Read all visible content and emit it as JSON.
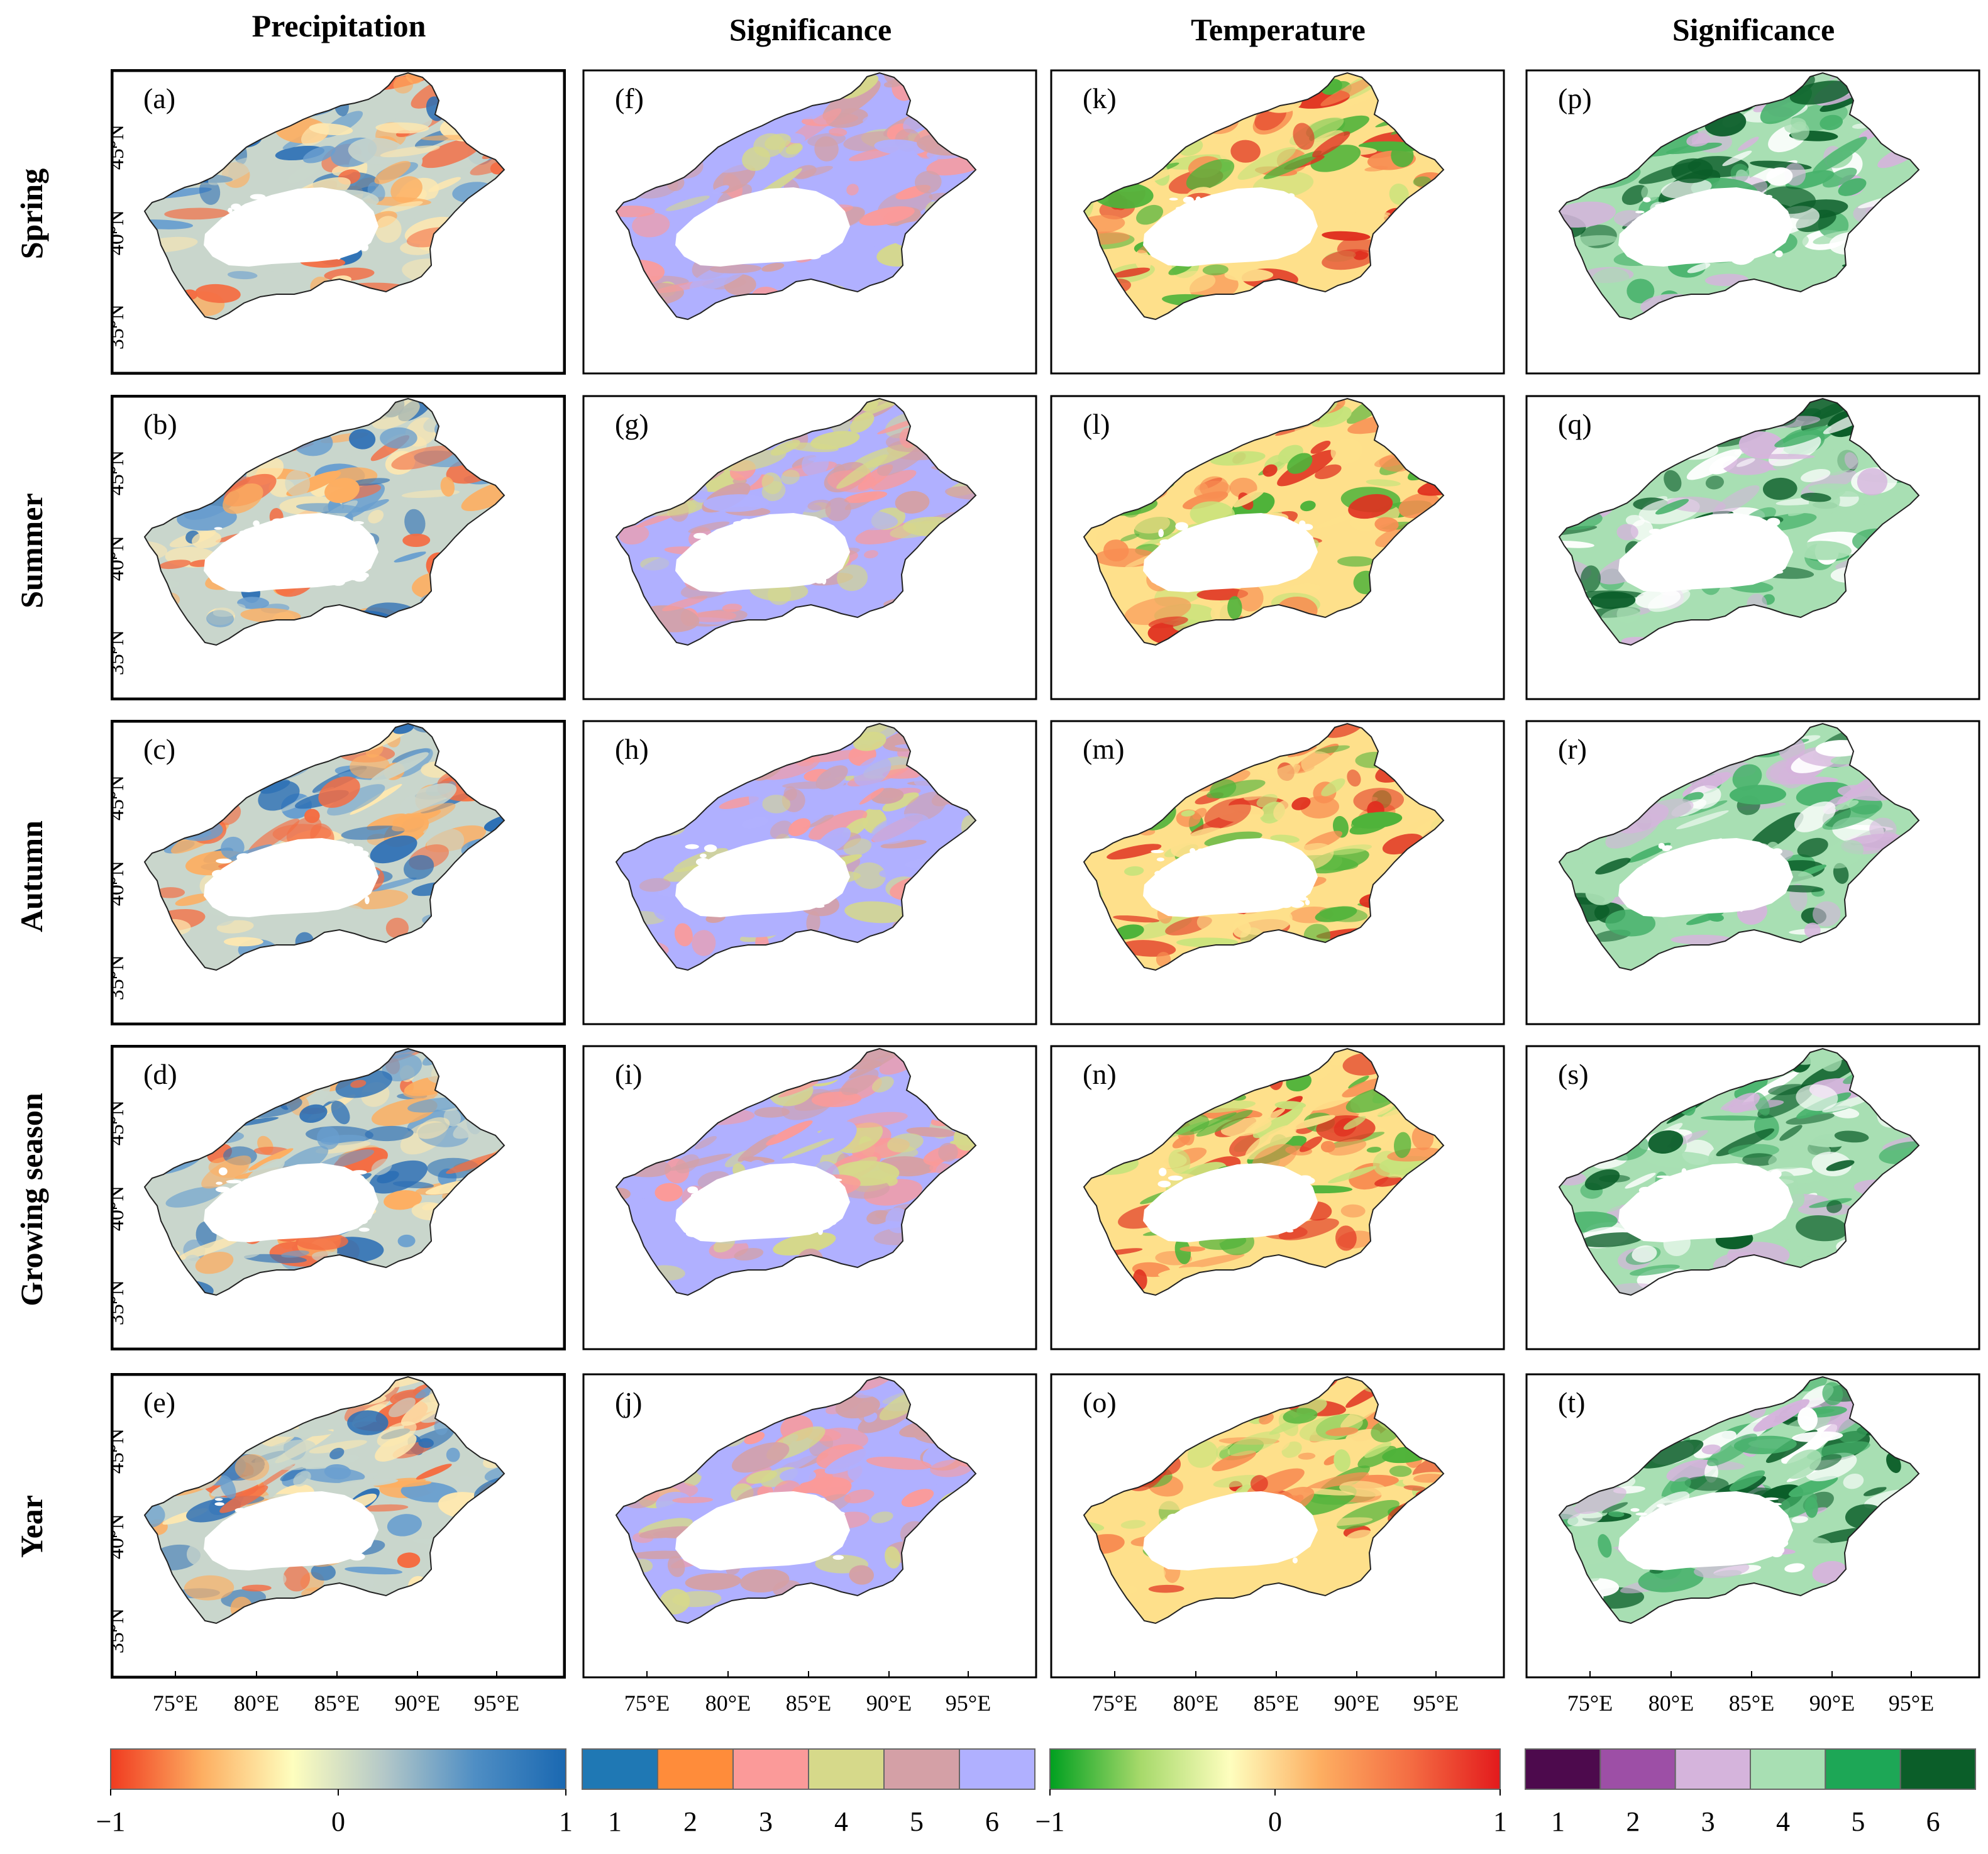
{
  "column_headers": [
    "Precipitation",
    "Significance",
    "Temperature",
    "Significance"
  ],
  "row_headers": [
    "Spring",
    "Summer",
    "Autumn",
    "Growing season",
    "Year"
  ],
  "panel_labels": [
    [
      "(a)",
      "(b)",
      "(c)",
      "(d)",
      "(e)"
    ],
    [
      "(f)",
      "(g)",
      "(h)",
      "(i)",
      "(j)"
    ],
    [
      "(k)",
      "(l)",
      "(m)",
      "(n)",
      "(o)"
    ],
    [
      "(p)",
      "(q)",
      "(r)",
      "(s)",
      "(t)"
    ]
  ],
  "lat_ticks": [
    "45°N",
    "40°N",
    "35°N"
  ],
  "lon_ticks": [
    "75°E",
    "80°E",
    "85°E",
    "90°E",
    "95°E"
  ],
  "legends": {
    "precipitation": {
      "min": "−1",
      "mid": "0",
      "max": "1",
      "colors": [
        "#f03b20",
        "#fdae61",
        "#fefebe",
        "#b4c8c8",
        "#4f8ec4",
        "#1a68b1"
      ]
    },
    "significance_precip": {
      "labels": [
        "1",
        "2",
        "3",
        "4",
        "5",
        "6"
      ],
      "colors": [
        "#1f78b4",
        "#ff8c3a",
        "#fb9a99",
        "#d6d98a",
        "#d4a0a6",
        "#b0b0ff"
      ]
    },
    "temperature": {
      "min": "−1",
      "mid": "0",
      "max": "1",
      "colors": [
        "#00a020",
        "#a6d96a",
        "#fefebe",
        "#fdae61",
        "#f46d43",
        "#e31a1c"
      ]
    },
    "significance_temp": {
      "labels": [
        "1",
        "2",
        "3",
        "4",
        "5",
        "6"
      ],
      "colors": [
        "#4d0a4d",
        "#9d4fa6",
        "#d5b4dc",
        "#a8dfb3",
        "#1da756",
        "#0b5e29"
      ]
    }
  },
  "map_palettes": {
    "precipitation": [
      "#f46d43",
      "#fdae61",
      "#fee8b0",
      "#c9d6cc",
      "#6a9fcf",
      "#2c6fb5"
    ],
    "significance_precip": [
      "#fb9a99",
      "#d6d98a",
      "#b0b0ff",
      "#d4a0a6"
    ],
    "temperature": [
      "#4fb33a",
      "#c7e37b",
      "#fee08b",
      "#f88d52",
      "#e03020"
    ],
    "significance_temp": [
      "#ffffff",
      "#d5b4dc",
      "#a8dfb3",
      "#47b26b",
      "#0b5e29"
    ]
  }
}
